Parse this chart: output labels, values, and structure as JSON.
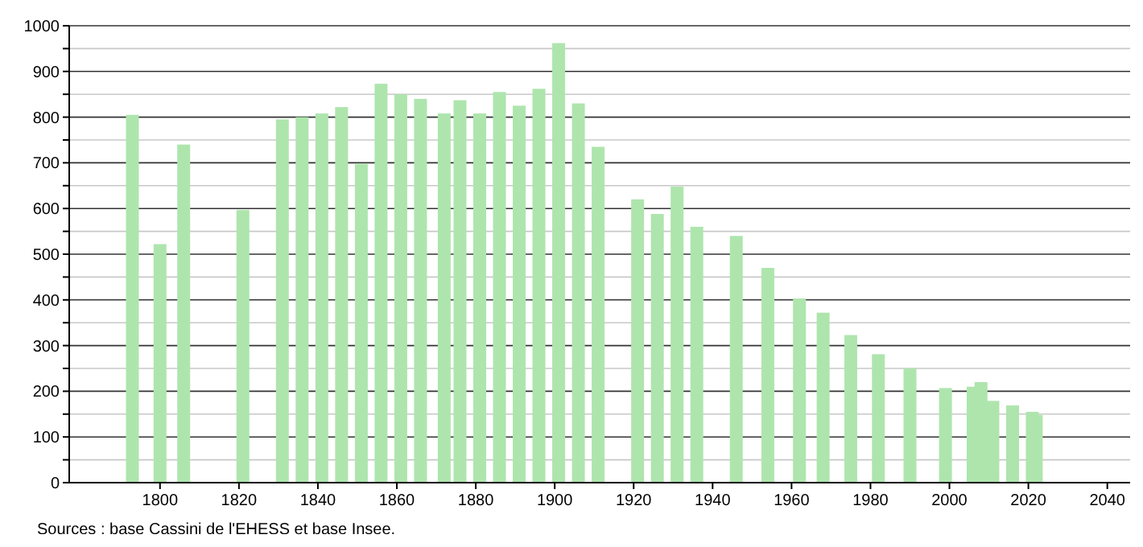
{
  "chart_data": {
    "type": "bar",
    "x": [
      1793,
      1800,
      1806,
      1821,
      1831,
      1836,
      1841,
      1846,
      1851,
      1856,
      1861,
      1866,
      1872,
      1876,
      1881,
      1886,
      1891,
      1896,
      1901,
      1906,
      1911,
      1921,
      1926,
      1931,
      1936,
      1946,
      1954,
      1962,
      1968,
      1975,
      1982,
      1990,
      1999,
      2006,
      2008,
      2011,
      2016,
      2021,
      2022
    ],
    "values": [
      805,
      522,
      740,
      597,
      795,
      800,
      808,
      822,
      698,
      873,
      850,
      840,
      808,
      837,
      808,
      855,
      825,
      862,
      962,
      830,
      735,
      620,
      588,
      648,
      560,
      540,
      470,
      403,
      372,
      323,
      281,
      250,
      207,
      210,
      220,
      179,
      169,
      155,
      148
    ],
    "color": "#aee5ad",
    "xlim": [
      1777,
      2047
    ],
    "xticks": [
      1800,
      1820,
      1840,
      1860,
      1880,
      1900,
      1920,
      1940,
      1960,
      1980,
      2000,
      2020,
      2040
    ],
    "ylim": [
      0,
      1000
    ],
    "yticks": [
      0,
      {
        "value": 50,
        "label": null
      },
      100,
      {
        "value": 150,
        "label": null
      },
      200,
      {
        "value": 250,
        "label": null
      },
      300,
      {
        "value": 350,
        "label": null
      },
      400,
      {
        "value": 450,
        "label": null
      },
      500,
      {
        "value": 550,
        "label": null
      },
      600,
      {
        "value": 650,
        "label": null
      },
      700,
      {
        "value": 750,
        "label": null
      },
      800,
      {
        "value": 850,
        "label": null
      },
      900,
      {
        "value": 950,
        "label": null
      },
      1000
    ],
    "grid": true,
    "annotations": [
      "Sources : base Cassini de l'EHESS et base Insee."
    ]
  }
}
